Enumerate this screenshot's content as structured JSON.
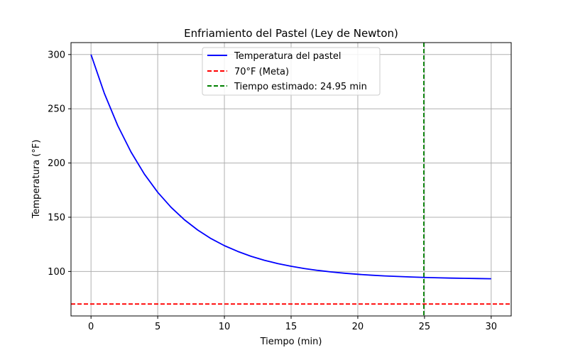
{
  "chart_data": {
    "type": "line",
    "title": "Enfriamiento del Pastel (Ley de Newton)",
    "xlabel": "Tiempo (min)",
    "ylabel": "Temperatura (°F)",
    "xlim": [
      -1.5,
      31.5
    ],
    "ylim": [
      59,
      311
    ],
    "xticks": [
      0,
      5,
      10,
      15,
      20,
      25,
      30
    ],
    "yticks": [
      100,
      150,
      200,
      250,
      300
    ],
    "grid": true,
    "legend_position": "top-center",
    "series": [
      {
        "name": "Temperatura del pastel",
        "color": "#0000ff",
        "style": "solid",
        "x": [
          0,
          1,
          2,
          3,
          4,
          5,
          6,
          7,
          8,
          9,
          10,
          11,
          12,
          13,
          14,
          15,
          16,
          17,
          18,
          19,
          20,
          21,
          22,
          23,
          24,
          25,
          26,
          27,
          28,
          29,
          30
        ],
        "y": [
          300,
          264.2,
          234.6,
          210.1,
          189.8,
          173.0,
          159.2,
          147.7,
          138.2,
          130.3,
          123.8,
          118.5,
          114.0,
          110.3,
          107.3,
          104.8,
          102.7,
          101.0,
          99.6,
          98.4,
          97.4,
          96.6,
          95.9,
          95.4,
          94.9,
          94.5,
          94.2,
          93.9,
          93.7,
          93.5,
          93.3
        ]
      }
    ],
    "reference_lines": [
      {
        "name": "70°F (Meta)",
        "orientation": "horizontal",
        "value": 70,
        "color": "#ff0000",
        "style": "dashed"
      },
      {
        "name": "Tiempo estimado: 24.95 min",
        "orientation": "vertical",
        "value": 24.95,
        "color": "#008000",
        "style": "dashed"
      }
    ]
  }
}
